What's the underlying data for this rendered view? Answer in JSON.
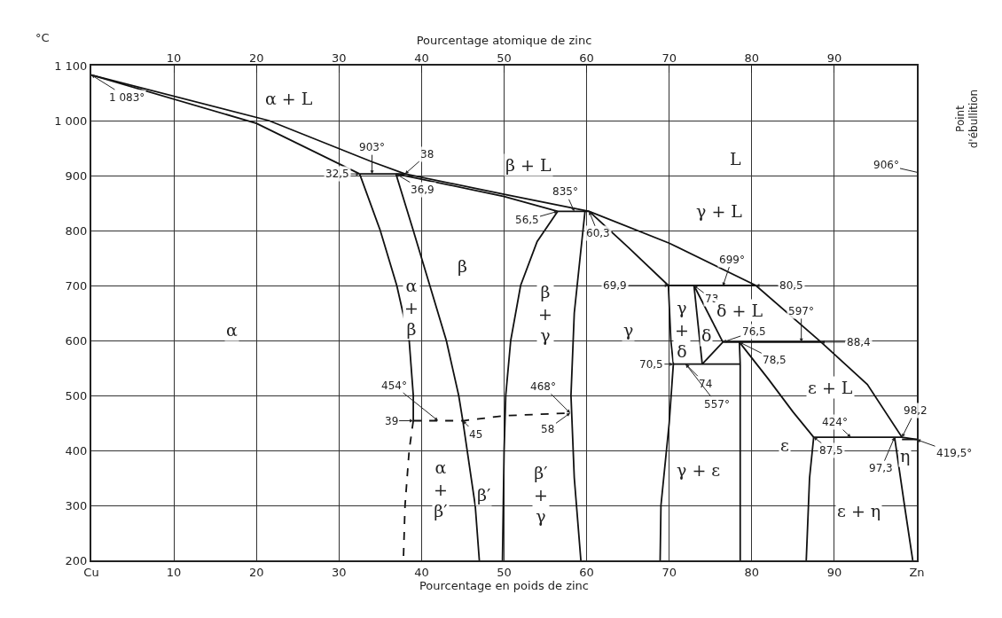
{
  "chart_data": {
    "type": "line",
    "xlabel": "Pourcentage en poids de zinc",
    "x2label": "Pourcentage atomique de zinc",
    "ylabel": "°C",
    "xlim": [
      0,
      100
    ],
    "x2lim": [
      0,
      100
    ],
    "ylim": [
      200,
      1100
    ],
    "xticks": [
      {
        "value": 0,
        "label": "Cu"
      },
      10,
      20,
      30,
      40,
      50,
      60,
      70,
      80,
      90,
      {
        "value": 100,
        "label": "Zn"
      }
    ],
    "x2ticks": [
      10,
      20,
      30,
      40,
      50,
      60,
      70,
      80,
      90
    ],
    "yticks": [
      200,
      300,
      400,
      500,
      600,
      700,
      800,
      900,
      {
        "value": 1000,
        "label": "1 000"
      },
      {
        "value": 1100,
        "label": "1 100"
      }
    ],
    "grid": true,
    "series": [
      {
        "color": "#111111",
        "x": [
          0,
          21.5,
          34,
          38,
          50,
          60.3,
          70,
          80.5,
          88.4,
          94,
          98.2,
          100
        ],
        "values": [
          1083,
          1000,
          925,
          903,
          866,
          835,
          777,
          700,
          597,
          520,
          424,
          420
        ]
      },
      {
        "color": "#111111",
        "x": [
          0,
          20,
          32.5
        ],
        "values": [
          1083,
          995,
          903
        ]
      },
      {
        "color": "#111111",
        "x": [
          32.5,
          38
        ],
        "values": [
          903,
          903
        ]
      },
      {
        "color": "#111111",
        "x": [
          36.9,
          50,
          56.5
        ],
        "values": [
          903,
          862,
          835
        ]
      },
      {
        "color": "#111111",
        "x": [
          32.5,
          35,
          37,
          38.5,
          39,
          39
        ],
        "values": [
          903,
          800,
          700,
          600,
          500,
          454
        ]
      },
      {
        "color": "#111111",
        "line_style": "dashed",
        "x": [
          39,
          38.5,
          38,
          37.8
        ],
        "values": [
          454,
          400,
          300,
          200
        ]
      },
      {
        "color": "#111111",
        "x": [
          36.9,
          39,
          41,
          43,
          44.5,
          45,
          46.5,
          47
        ],
        "values": [
          903,
          800,
          700,
          600,
          500,
          454,
          300,
          200
        ]
      },
      {
        "color": "#111111",
        "line_style": "dashed",
        "x": [
          39,
          45,
          50,
          58
        ],
        "values": [
          454,
          454,
          463,
          468
        ]
      },
      {
        "color": "#111111",
        "x": [
          56.5,
          60.3
        ],
        "values": [
          835,
          835
        ]
      },
      {
        "color": "#111111",
        "x": [
          56.5,
          54,
          52,
          50.8,
          50.2,
          50,
          49.8
        ],
        "values": [
          835,
          780,
          700,
          600,
          500,
          400,
          200
        ]
      },
      {
        "color": "#111111",
        "x": [
          59.8,
          59.2,
          58.5,
          58.1,
          58.5,
          59.3
        ],
        "values": [
          835,
          750,
          650,
          500,
          350,
          200
        ]
      },
      {
        "color": "#111111",
        "x": [
          60.3,
          65,
          69.9
        ],
        "values": [
          835,
          770,
          700
        ]
      },
      {
        "color": "#111111",
        "x": [
          69.9,
          70.2,
          70.5,
          70,
          69,
          68.9
        ],
        "values": [
          700,
          600,
          557,
          450,
          300,
          200
        ]
      },
      {
        "color": "#111111",
        "x": [
          69.9,
          80.5
        ],
        "values": [
          700,
          700
        ]
      },
      {
        "color": "#111111",
        "x": [
          73,
          74
        ],
        "values": [
          700,
          557
        ]
      },
      {
        "color": "#111111",
        "x": [
          73,
          76.5
        ],
        "values": [
          700,
          597
        ]
      },
      {
        "color": "#111111",
        "x": [
          74,
          76.5
        ],
        "values": [
          557,
          597
        ]
      },
      {
        "color": "#111111",
        "x": [
          70.5,
          78.6
        ],
        "values": [
          557,
          557
        ]
      },
      {
        "color": "#111111",
        "x": [
          76.5,
          88.4
        ],
        "values": [
          597,
          597
        ]
      },
      {
        "color": "#111111",
        "x": [
          78.5,
          78.6,
          78.6
        ],
        "values": [
          597,
          557,
          200
        ]
      },
      {
        "color": "#111111",
        "x": [
          78.5,
          82,
          85,
          87.5
        ],
        "values": [
          597,
          530,
          470,
          424
        ]
      },
      {
        "color": "#111111",
        "x": [
          87.5,
          98.2
        ],
        "values": [
          424,
          424
        ]
      },
      {
        "color": "#111111",
        "x": [
          87.5,
          87,
          86.6
        ],
        "values": [
          424,
          350,
          200
        ]
      },
      {
        "color": "#111111",
        "x": [
          97.3,
          98.5,
          99.5
        ],
        "values": [
          424,
          300,
          200
        ]
      },
      {
        "color": "#111111",
        "x": [
          98.2,
          100
        ],
        "values": [
          420,
          420
        ]
      }
    ],
    "annotations": [
      {
        "text": "1 083°",
        "x": 0,
        "y": 1083
      },
      {
        "text": "903°",
        "x": 34,
        "y": 903
      },
      {
        "text": "32,5",
        "x": 32.5,
        "y": 903
      },
      {
        "text": "38",
        "x": 38,
        "y": 903
      },
      {
        "text": "36,9",
        "x": 36.9,
        "y": 903
      },
      {
        "text": "835°",
        "x": 58.5,
        "y": 835
      },
      {
        "text": "56,5",
        "x": 56.5,
        "y": 835
      },
      {
        "text": "60,3",
        "x": 60.3,
        "y": 835
      },
      {
        "text": "69,9",
        "x": 69.9,
        "y": 700
      },
      {
        "text": "73",
        "x": 73,
        "y": 700
      },
      {
        "text": "699°",
        "x": 76.5,
        "y": 699
      },
      {
        "text": "80,5",
        "x": 80.5,
        "y": 700
      },
      {
        "text": "597°",
        "x": 86,
        "y": 597
      },
      {
        "text": "88,4",
        "x": 88.4,
        "y": 597
      },
      {
        "text": "76,5",
        "x": 76.5,
        "y": 597
      },
      {
        "text": "78,5",
        "x": 78.5,
        "y": 597
      },
      {
        "text": "70,5",
        "x": 70.5,
        "y": 557
      },
      {
        "text": "74",
        "x": 72,
        "y": 557
      },
      {
        "text": "557°",
        "x": 72,
        "y": 557
      },
      {
        "text": "454°",
        "x": 42,
        "y": 454
      },
      {
        "text": "39",
        "x": 39,
        "y": 454
      },
      {
        "text": "45",
        "x": 45,
        "y": 454
      },
      {
        "text": "468°",
        "x": 58,
        "y": 468
      },
      {
        "text": "58",
        "x": 58,
        "y": 468
      },
      {
        "text": "424°",
        "x": 92,
        "y": 424
      },
      {
        "text": "98,2",
        "x": 98.2,
        "y": 424
      },
      {
        "text": "87,5",
        "x": 87.5,
        "y": 424
      },
      {
        "text": "97,3",
        "x": 97.3,
        "y": 424
      },
      {
        "text": "419,5°",
        "x": 100,
        "y": 419.5
      },
      "906°",
      "Point\nd'ébullition",
      "α + L",
      "β + L",
      "L",
      "γ + L",
      "α",
      "α\n+\nβ",
      "β",
      "β\n+\nγ",
      "γ",
      "γ\n+\nδ",
      "δ",
      "δ + L",
      "ε + L",
      "ε",
      "α\n+\nβ′",
      "β′",
      "β′\n+\nγ",
      "γ + ε",
      "ε + η",
      "η"
    ]
  }
}
